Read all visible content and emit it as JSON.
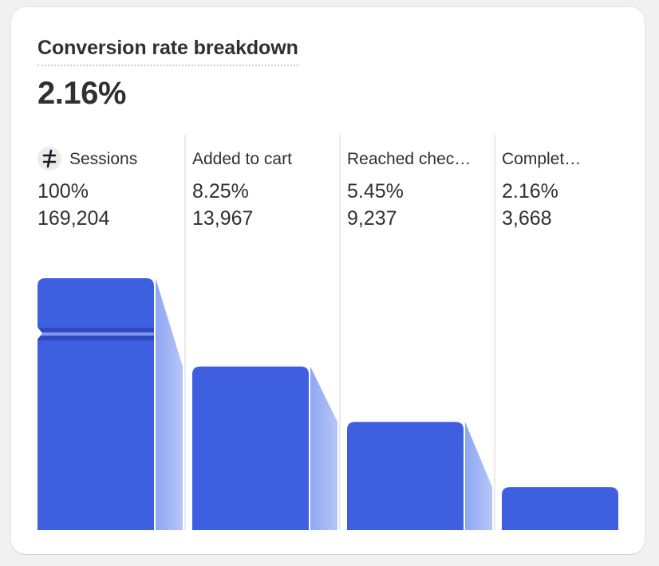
{
  "card": {
    "title": "Conversion rate breakdown",
    "headline_value": "2.16%"
  },
  "chart_data": {
    "type": "bar",
    "title": "Conversion rate breakdown",
    "categories": [
      "Sessions",
      "Added to cart",
      "Reached checkout",
      "Completed checkout"
    ],
    "display_labels": [
      "Sessions",
      "Added to cart",
      "Reached chec…",
      "Complet…"
    ],
    "percentages": [
      "100%",
      "8.25%",
      "5.45%",
      "2.16%"
    ],
    "counts": [
      "169,204",
      "13,967",
      "9,237",
      "3,668"
    ],
    "values": [
      169204,
      13967,
      9237,
      3668
    ],
    "axis_break_on_first_bar": true,
    "colors": {
      "bar": "#3e60e0",
      "connector_start": "#8ea6f3",
      "connector_end": "#b7c6f7",
      "sessions_icon_bg": "#ececec",
      "sessions_icon_fg": "#1a1a2e"
    },
    "icons": [
      "sessions-icon"
    ]
  }
}
